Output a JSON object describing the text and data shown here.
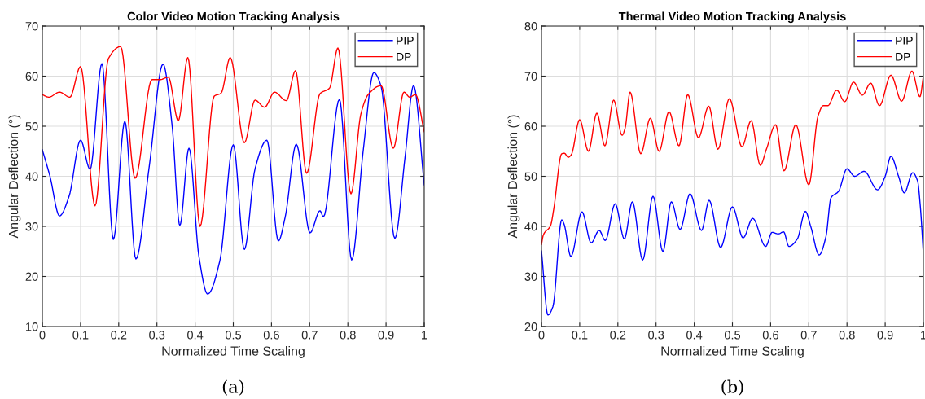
{
  "chart_data": [
    {
      "type": "line",
      "title": "Color Video Motion Tracking Analysis",
      "xlabel": "Normalized Time Scaling",
      "ylabel": "Angular Deflection (°)",
      "annotations": [
        "(a)"
      ],
      "xlim": [
        0,
        1
      ],
      "ylim": [
        10,
        70
      ],
      "xticks": [
        0,
        0.1,
        0.2,
        0.3,
        0.4,
        0.5,
        0.6,
        0.7,
        0.8,
        0.9,
        1
      ],
      "yticks": [
        10,
        20,
        30,
        40,
        50,
        60,
        70
      ],
      "grid": true,
      "legend": "top right",
      "line_style": "solid",
      "marker": "none",
      "series": [
        {
          "name": "PIP",
          "color": "#0000ff",
          "x": [
            0,
            0.02,
            0.045,
            0.07,
            0.1,
            0.125,
            0.156,
            0.186,
            0.216,
            0.245,
            0.28,
            0.316,
            0.34,
            0.36,
            0.384,
            0.41,
            0.433,
            0.465,
            0.5,
            0.529,
            0.557,
            0.588,
            0.618,
            0.636,
            0.665,
            0.701,
            0.727,
            0.736,
            0.778,
            0.81,
            0.84,
            0.868,
            0.887,
            0.923,
            0.95,
            0.972,
            1
          ],
          "values": [
            45.3,
            40,
            32.1,
            36,
            47.2,
            41.4,
            62.5,
            27.4,
            51,
            23.5,
            42,
            62.4,
            50,
            30.2,
            45.6,
            24,
            16.5,
            23.2,
            46.3,
            25.4,
            41.5,
            47.2,
            27.1,
            31.9,
            46.4,
            28.7,
            33.1,
            31.9,
            55.4,
            23.3,
            45,
            60.7,
            58,
            27.6,
            44,
            58.1,
            38.3
          ]
        },
        {
          "name": "DP",
          "color": "#ff0000",
          "x": [
            0,
            0.017,
            0.045,
            0.072,
            0.1,
            0.138,
            0.173,
            0.205,
            0.243,
            0.287,
            0.308,
            0.33,
            0.356,
            0.381,
            0.413,
            0.45,
            0.468,
            0.492,
            0.529,
            0.557,
            0.582,
            0.608,
            0.639,
            0.663,
            0.692,
            0.727,
            0.752,
            0.774,
            0.808,
            0.834,
            0.853,
            0.887,
            0.919,
            0.947,
            0.962,
            0.977,
            1
          ],
          "values": [
            56.3,
            55.8,
            56.8,
            55.8,
            61.9,
            34.1,
            63.5,
            65.9,
            39.6,
            59.3,
            59.3,
            59.8,
            51.1,
            63.7,
            30,
            56,
            56.6,
            63.7,
            46.7,
            55.2,
            53.8,
            56.8,
            55.1,
            61.1,
            40.6,
            56.5,
            57.6,
            65.6,
            36.5,
            52.4,
            56.3,
            58.1,
            45.6,
            56.8,
            55.8,
            56.3,
            48.9
          ]
        }
      ]
    },
    {
      "type": "line",
      "title": "Thermal Video Motion Tracking Analysis",
      "xlabel": "Normalized Time Scaling",
      "ylabel": "Angular Deflection (°)",
      "annotations": [
        "(b)"
      ],
      "xlim": [
        0,
        1
      ],
      "ylim": [
        20,
        80
      ],
      "xticks": [
        0,
        0.1,
        0.2,
        0.3,
        0.4,
        0.5,
        0.6,
        0.7,
        0.8,
        0.9,
        1
      ],
      "yticks": [
        20,
        30,
        40,
        50,
        60,
        70,
        80
      ],
      "grid": true,
      "legend": "top right",
      "line_style": "solid",
      "marker": "none",
      "series": [
        {
          "name": "PIP",
          "color": "#0000ff",
          "x": [
            0,
            0.017,
            0.03,
            0.053,
            0.059,
            0.077,
            0.106,
            0.13,
            0.151,
            0.167,
            0.193,
            0.217,
            0.238,
            0.265,
            0.292,
            0.318,
            0.34,
            0.363,
            0.389,
            0.419,
            0.439,
            0.469,
            0.5,
            0.528,
            0.553,
            0.587,
            0.604,
            0.62,
            0.634,
            0.648,
            0.67,
            0.691,
            0.705,
            0.727,
            0.745,
            0.758,
            0.778,
            0.8,
            0.82,
            0.845,
            0.88,
            0.9,
            0.915,
            0.935,
            0.95,
            0.972,
            0.985,
            0.992,
            1
          ],
          "values": [
            35.1,
            22.3,
            24,
            41.3,
            40.5,
            34,
            42.9,
            36.7,
            39.2,
            37.2,
            44.5,
            37.5,
            44.9,
            33.3,
            46,
            35,
            44.9,
            39.4,
            46.5,
            39.2,
            45.2,
            35.8,
            43.9,
            37.7,
            41.6,
            36,
            38.8,
            38.5,
            38.9,
            36,
            37.5,
            43,
            40,
            34.3,
            38,
            45.7,
            47,
            51.5,
            50,
            51,
            47.3,
            50,
            54,
            50,
            46.7,
            50.7,
            49,
            44,
            34.5
          ]
        },
        {
          "name": "DP",
          "color": "#ff0000",
          "x": [
            0,
            0.005,
            0.024,
            0.032,
            0.053,
            0.06,
            0.07,
            0.078,
            0.1,
            0.123,
            0.145,
            0.166,
            0.189,
            0.211,
            0.219,
            0.232,
            0.26,
            0.285,
            0.308,
            0.334,
            0.36,
            0.383,
            0.411,
            0.438,
            0.462,
            0.492,
            0.525,
            0.549,
            0.573,
            0.589,
            0.613,
            0.635,
            0.666,
            0.7,
            0.724,
            0.738,
            0.75,
            0.773,
            0.794,
            0.817,
            0.84,
            0.862,
            0.885,
            0.915,
            0.943,
            0.97,
            0.991,
            1
          ],
          "values": [
            36.4,
            38.3,
            40.2,
            43.4,
            54.5,
            54.6,
            53.8,
            54.3,
            61.3,
            55,
            62.6,
            56.1,
            65.2,
            58.2,
            59.6,
            66.8,
            54.5,
            61.6,
            55,
            62.9,
            56.1,
            66.3,
            57.7,
            64,
            55.4,
            65.5,
            55.9,
            61.1,
            52.2,
            55.4,
            60.3,
            51.1,
            60.3,
            48.3,
            62,
            64.1,
            64.1,
            67.2,
            64.9,
            68.8,
            66.2,
            68.6,
            64.1,
            70.2,
            65,
            71,
            65.9,
            70
          ]
        }
      ]
    }
  ]
}
